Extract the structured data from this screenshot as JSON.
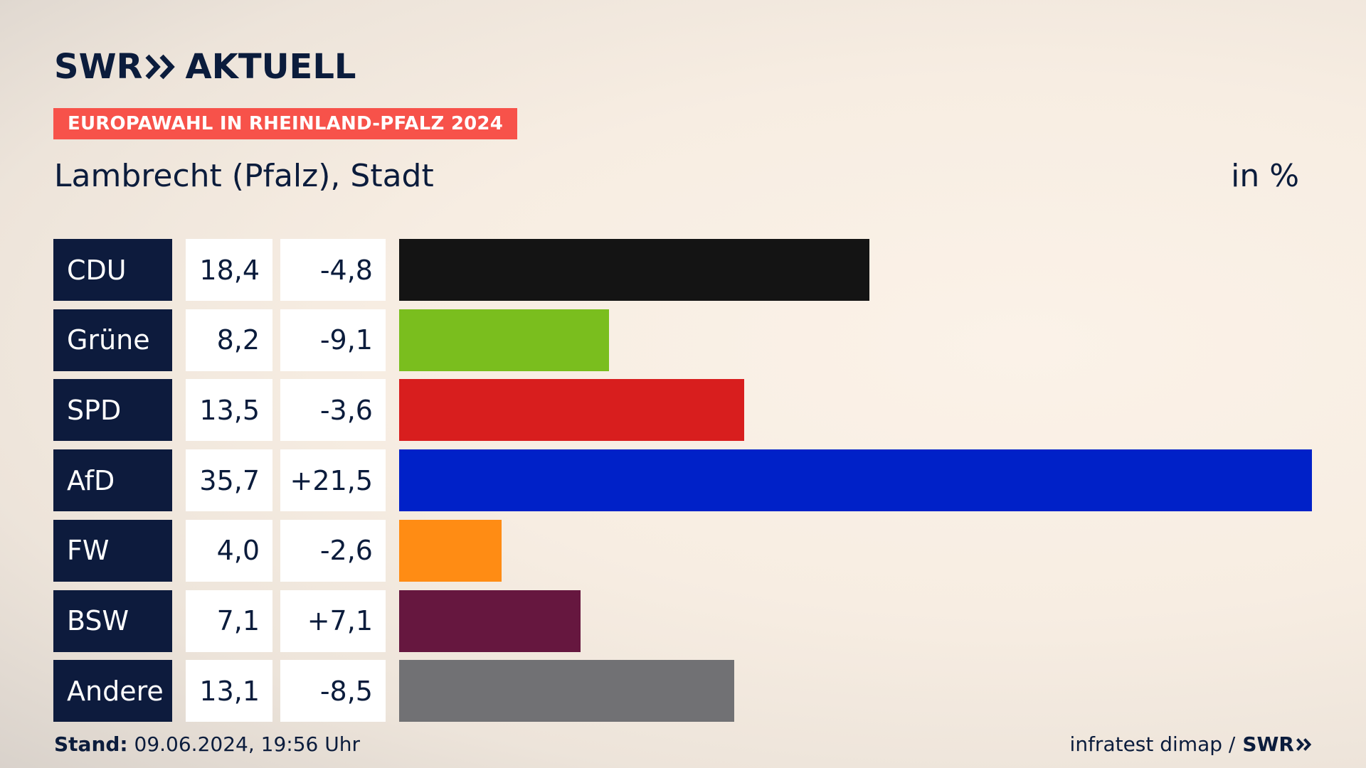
{
  "header": {
    "logo_left": "SWR",
    "logo_right": "AKTUELL",
    "badge": "EUROPAWAHL IN RHEINLAND-PFALZ 2024",
    "title": "Lambrecht (Pfalz), Stadt",
    "unit": "in %"
  },
  "footer": {
    "stand_label": "Stand:",
    "stand_value": " 09.06.2024, 19:56 Uhr",
    "source": "infratest dimap /",
    "source_logo": "SWR"
  },
  "colors": {
    "navy": "#0d1b3d",
    "badge": "#f7524a"
  },
  "chart_data": {
    "type": "bar",
    "orientation": "horizontal",
    "categories": [
      "CDU",
      "Grüne",
      "SPD",
      "AfD",
      "FW",
      "BSW",
      "Andere"
    ],
    "values": [
      18.4,
      8.2,
      13.5,
      35.7,
      4.0,
      7.1,
      13.1
    ],
    "value_labels": [
      "18,4",
      "8,2",
      "13,5",
      "35,7",
      "4,0",
      "7,1",
      "13,1"
    ],
    "change_labels": [
      "-4,8",
      "-9,1",
      "-3,6",
      "+21,5",
      "-2,6",
      "+7,1",
      "-8,5"
    ],
    "changes": [
      -4.8,
      -9.1,
      -3.6,
      21.5,
      -2.6,
      7.1,
      -8.5
    ],
    "colors": [
      "#141414",
      "#7abe1e",
      "#d81e1e",
      "#0021c8",
      "#ff8c14",
      "#66173f",
      "#717174"
    ],
    "xlim": [
      0,
      35.7
    ],
    "grid": false,
    "legend": "none"
  }
}
